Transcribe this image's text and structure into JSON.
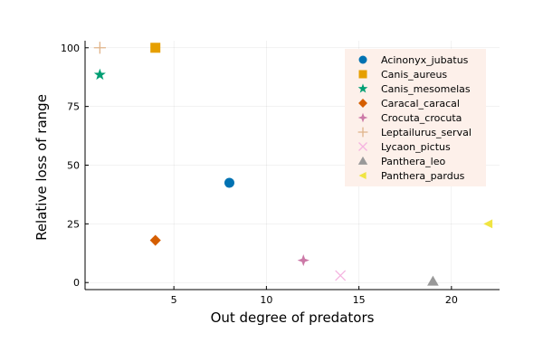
{
  "chart_data": {
    "type": "scatter",
    "xlabel": "Out degree of predators",
    "ylabel": "Relative loss of range",
    "xlim": [
      0.2,
      22.6
    ],
    "ylim": [
      -3,
      103
    ],
    "xticks": [
      5,
      10,
      15,
      20
    ],
    "yticks": [
      0,
      25,
      50,
      75,
      100
    ],
    "grid": true,
    "legend_position": "top-right",
    "legend_background": "#fdf0ea",
    "series": [
      {
        "name": "Acinonyx_jubatus",
        "marker": "circle",
        "color": "#0072b2",
        "x": [
          8
        ],
        "y": [
          42.5
        ]
      },
      {
        "name": "Canis_aureus",
        "marker": "square",
        "color": "#e69f00",
        "x": [
          4
        ],
        "y": [
          100
        ]
      },
      {
        "name": "Canis_mesomelas",
        "marker": "star",
        "color": "#009e73",
        "x": [
          1
        ],
        "y": [
          88.5
        ]
      },
      {
        "name": "Caracal_caracal",
        "marker": "diamond",
        "color": "#d55e00",
        "x": [
          4
        ],
        "y": [
          18
        ]
      },
      {
        "name": "Crocuta_crocuta",
        "marker": "star4",
        "color": "#cc79a7",
        "x": [
          12
        ],
        "y": [
          9.5
        ]
      },
      {
        "name": "Leptailurus_serval",
        "marker": "plus",
        "color": "#e0b48a",
        "x": [
          1
        ],
        "y": [
          100
        ]
      },
      {
        "name": "Lycaon_pictus",
        "marker": "x",
        "color": "#f5b4e0",
        "x": [
          14
        ],
        "y": [
          3
        ]
      },
      {
        "name": "Panthera_leo",
        "marker": "triangle",
        "color": "#999999",
        "x": [
          19
        ],
        "y": [
          0.5
        ]
      },
      {
        "name": "Panthera_pardus",
        "marker": "triangle-left",
        "color": "#f0e442",
        "x": [
          22
        ],
        "y": [
          25
        ]
      }
    ]
  }
}
